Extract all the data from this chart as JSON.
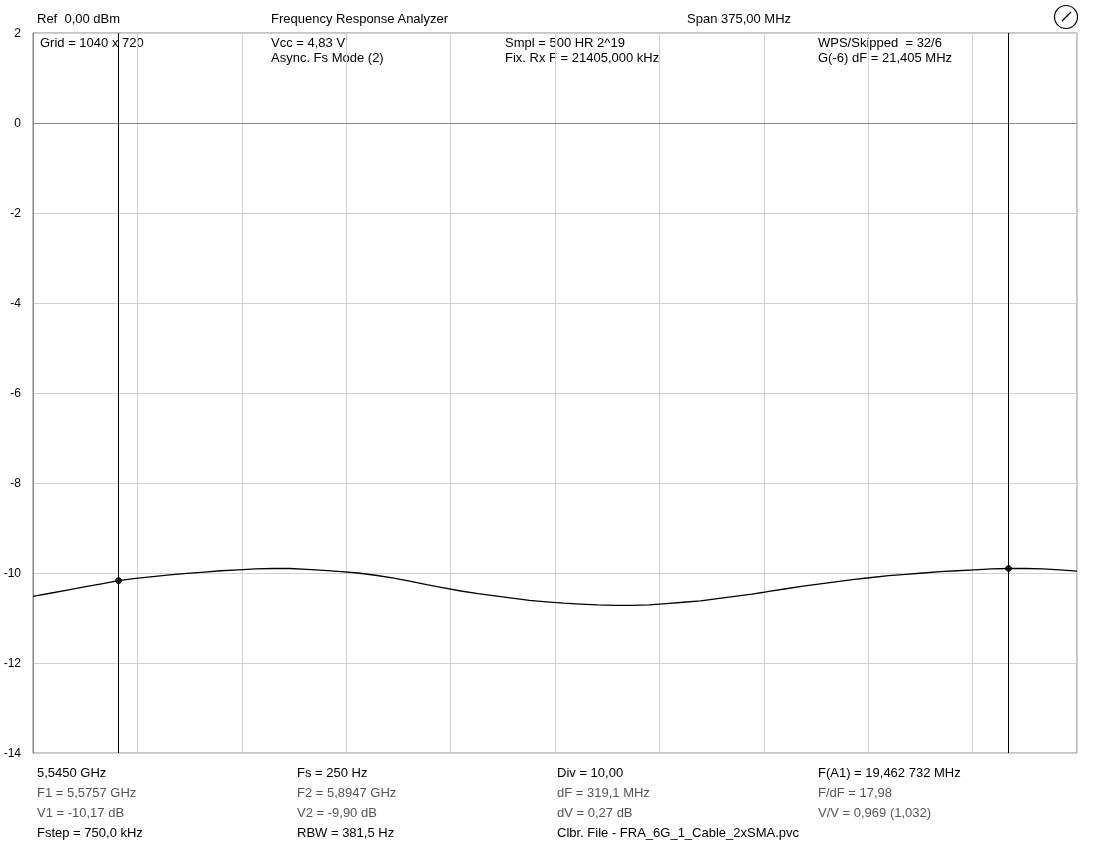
{
  "chart_data": {
    "type": "line",
    "title": "Frequency Response Analyzer",
    "categories": [
      null,
      null,
      null,
      null,
      null,
      null,
      null,
      null,
      null,
      null,
      null,
      null,
      null,
      null,
      null,
      null,
      null,
      null,
      null,
      null,
      null,
      null,
      null,
      null,
      null,
      null,
      null,
      null,
      null,
      null,
      null,
      null,
      null,
      null,
      null,
      null,
      null,
      null,
      null,
      null,
      null,
      null,
      null,
      null,
      null,
      null,
      null,
      null,
      null,
      null,
      null,
      null,
      null,
      null,
      null,
      null,
      null,
      null,
      null,
      null,
      null,
      null
    ],
    "ylim": [
      -14,
      2
    ],
    "yticks": [
      -14,
      -12,
      -10,
      -8,
      -6,
      -4,
      -2,
      0,
      2
    ],
    "tick_labels": "y",
    "grid": true,
    "series": [
      {
        "color": "#000000",
        "values": [
          -10.52,
          -10.45,
          -10.38,
          -10.31,
          -10.24,
          -10.17,
          -10.12,
          -10.08,
          -10.04,
          -10.01,
          -9.98,
          -9.95,
          -9.93,
          -9.91,
          -9.9,
          -9.9,
          -9.92,
          -9.94,
          -9.97,
          -10.0,
          -10.05,
          -10.11,
          -10.18,
          -10.26,
          -10.33,
          -10.4,
          -10.46,
          -10.51,
          -10.56,
          -10.61,
          -10.64,
          -10.67,
          -10.69,
          -10.71,
          -10.72,
          -10.72,
          -10.71,
          -10.68,
          -10.65,
          -10.62,
          -10.57,
          -10.52,
          -10.47,
          -10.41,
          -10.35,
          -10.29,
          -10.24,
          -10.19,
          -10.14,
          -10.1,
          -10.06,
          -10.03,
          -10.0,
          -9.97,
          -9.95,
          -9.93,
          -9.91,
          -9.9,
          -9.9,
          -9.91,
          -9.93,
          -9.96
        ]
      },
      {
        "type": "scatter",
        "color": "#000000",
        "marker": "circle",
        "values": [
          null,
          null,
          null,
          null,
          null,
          -10.17,
          null,
          null,
          null,
          null,
          null,
          null,
          null,
          null,
          null,
          null,
          null,
          null,
          null,
          null,
          null,
          null,
          null,
          null,
          null,
          null,
          null,
          null,
          null,
          null,
          null,
          null,
          null,
          null,
          null,
          null,
          null,
          null,
          null,
          null,
          null,
          null,
          null,
          null,
          null,
          null,
          null,
          null,
          null,
          null,
          null,
          null,
          null,
          null,
          null,
          null,
          null,
          -9.9,
          null,
          null,
          null,
          null
        ]
      }
    ],
    "annotations": [
      "Ref  0,00 dBm",
      "Span 375,00 MHz",
      "Grid = 1040 x 720",
      "Vcc = 4,83 V",
      "Smpl = 500 HR 2^19",
      "WPS/Skipped  = 32/6",
      "Async. Fs Mode (2)",
      "Fix. Rx F = 21405,000 kHz",
      "G(-6) dF = 21,405 MHz",
      "5,5450 GHz",
      "Fs = 250 Hz",
      "Div = 10,00",
      "F(A1) = 19,462 732 MHz",
      "F1 = 5,5757 GHz",
      "F2 = 5,8947 GHz",
      "dF = 319,1 MHz",
      "F/dF = 17,98",
      "V1 = -10,17 dB",
      "V2 = -9,90 dB",
      "dV = 0,27 dB",
      "V/V = 0,969 (1,032)",
      "Fstep = 750,0 kHz",
      "RBW = 381,5 Hz",
      "Clbr. File - FRA_6G_1_Cable_2xSMA.pvc"
    ]
  }
}
